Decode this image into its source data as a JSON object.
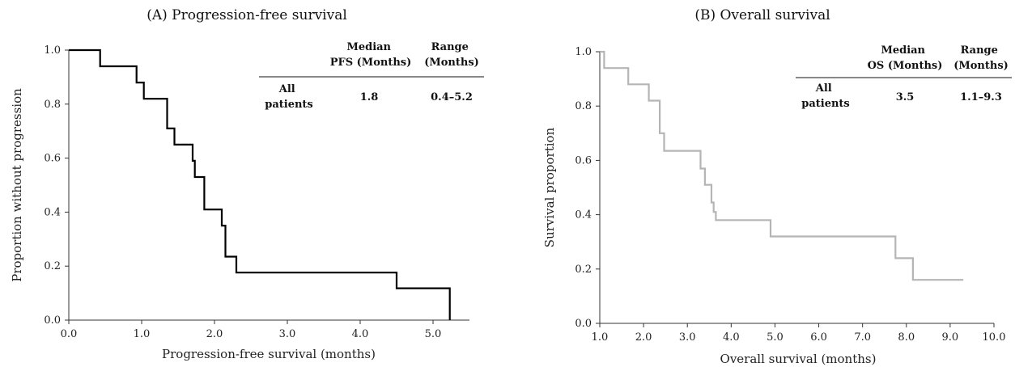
{
  "chart_data": [
    {
      "type": "line",
      "step": true,
      "title": "(A) Progression-free survival",
      "xlabel": "Progression-free survival (months)",
      "ylabel": "Proportion without progression",
      "xlim": [
        0,
        5.5
      ],
      "ylim": [
        0,
        1
      ],
      "x_ticks": [
        "0.0",
        "1.0",
        "2.0",
        "3.0",
        "4.0",
        "5.0"
      ],
      "y_ticks": [
        "0.0",
        "0.2",
        "0.4",
        "0.6",
        "0.8",
        "1.0"
      ],
      "grid": false,
      "line_color": "#000000",
      "series": [
        {
          "x": [
            0.0,
            0.43,
            0.93,
            1.03,
            1.35,
            1.45,
            1.7,
            1.73,
            1.86,
            2.1,
            2.15,
            2.3,
            4.5,
            5.23,
            5.23
          ],
          "y": [
            1.0,
            0.94,
            0.88,
            0.82,
            0.71,
            0.65,
            0.59,
            0.53,
            0.41,
            0.35,
            0.235,
            0.176,
            0.118,
            0.118,
            0.0
          ]
        }
      ],
      "table": {
        "headers": [
          [
            "Median",
            "PFS (Months)"
          ],
          [
            "Range",
            "(Months)"
          ]
        ],
        "row_label": [
          "All",
          "patients"
        ],
        "median": "1.8",
        "range": "0.4–5.2"
      }
    },
    {
      "type": "line",
      "step": true,
      "title": "(B) Overall survival",
      "xlabel": "Overall survival (months)",
      "ylabel": "Survival proportion",
      "xlim": [
        1,
        10
      ],
      "ylim": [
        0,
        1
      ],
      "x_ticks": [
        "1.0",
        "2.0",
        "3.0",
        "4.0",
        "5.0",
        "6.0",
        "7.0",
        "8.0",
        "9.0",
        "10.0"
      ],
      "y_ticks": [
        "0.0",
        "0.2",
        "0.4",
        "0.6",
        "0.8",
        "1.0"
      ],
      "grid": false,
      "line_color": "#b5b5b5",
      "series": [
        {
          "x": [
            1.0,
            1.1,
            1.65,
            2.12,
            2.37,
            2.47,
            3.3,
            3.4,
            3.55,
            3.6,
            3.65,
            4.9,
            7.75,
            8.15,
            9.3
          ],
          "y": [
            1.0,
            0.94,
            0.88,
            0.82,
            0.7,
            0.635,
            0.57,
            0.51,
            0.445,
            0.41,
            0.38,
            0.32,
            0.24,
            0.16,
            0.16
          ]
        }
      ],
      "table": {
        "headers": [
          [
            "Median",
            "OS (Months)"
          ],
          [
            "Range",
            "(Months)"
          ]
        ],
        "row_label": [
          "All",
          "patients"
        ],
        "median": "3.5",
        "range": "1.1–9.3"
      }
    }
  ]
}
